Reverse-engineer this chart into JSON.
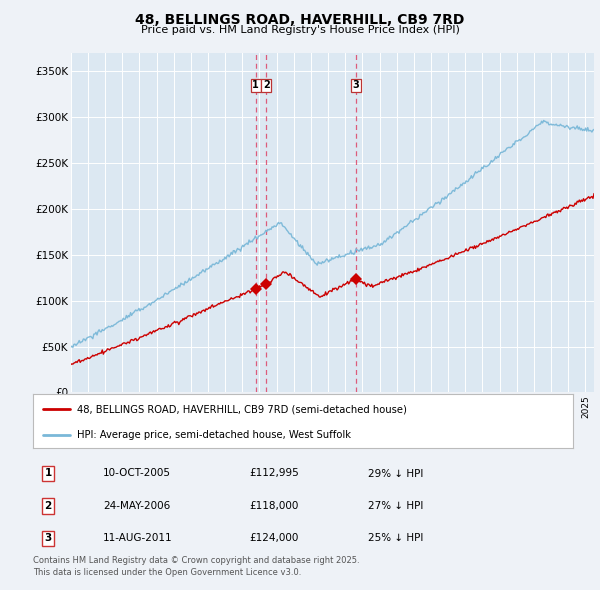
{
  "title": "48, BELLINGS ROAD, HAVERHILL, CB9 7RD",
  "subtitle": "Price paid vs. HM Land Registry's House Price Index (HPI)",
  "hpi_label": "HPI: Average price, semi-detached house, West Suffolk",
  "property_label": "48, BELLINGS ROAD, HAVERHILL, CB9 7RD (semi-detached house)",
  "hpi_color": "#7ab8d8",
  "property_color": "#cc0000",
  "vline_color": "#dd4466",
  "background_color": "#eef2f7",
  "plot_bg_color": "#dce8f2",
  "grid_color": "#ffffff",
  "ylim": [
    0,
    370000
  ],
  "yticks": [
    0,
    50000,
    100000,
    150000,
    200000,
    250000,
    300000,
    350000
  ],
  "ytick_labels": [
    "£0",
    "£50K",
    "£100K",
    "£150K",
    "£200K",
    "£250K",
    "£300K",
    "£350K"
  ],
  "transactions": [
    {
      "num": 1,
      "date": "10-OCT-2005",
      "price": 112995,
      "price_str": "£112,995",
      "pct": "29%",
      "dir": "↓",
      "x_year": 2005.78
    },
    {
      "num": 2,
      "date": "24-MAY-2006",
      "price": 118000,
      "price_str": "£118,000",
      "pct": "27%",
      "dir": "↓",
      "x_year": 2006.39
    },
    {
      "num": 3,
      "date": "11-AUG-2011",
      "price": 124000,
      "price_str": "£124,000",
      "pct": "25%",
      "dir": "↓",
      "x_year": 2011.61
    }
  ],
  "footer1": "Contains HM Land Registry data © Crown copyright and database right 2025.",
  "footer2": "This data is licensed under the Open Government Licence v3.0.",
  "xlim_start": 1995.0,
  "xlim_end": 2025.5
}
